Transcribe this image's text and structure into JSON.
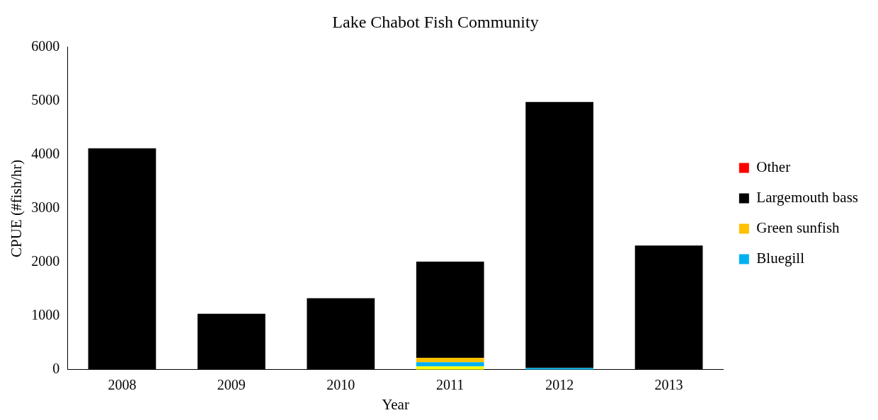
{
  "chart_data": {
    "type": "bar",
    "title": "Lake Chabot Fish Community",
    "xlabel": "Year",
    "ylabel": "CPUE (#fish/hr)",
    "categories": [
      "2008",
      "2009",
      "2010",
      "2011",
      "2012",
      "2013"
    ],
    "stacked": true,
    "series": [
      {
        "color": "#ffff00",
        "values": [
          0,
          0,
          0,
          60,
          0,
          0
        ]
      },
      {
        "name": "Bluegill",
        "color": "#00b0f0",
        "values": [
          0,
          0,
          0,
          80,
          30,
          0
        ]
      },
      {
        "name": "Green sunfish",
        "color": "#ffc000",
        "values": [
          0,
          0,
          0,
          80,
          0,
          0
        ]
      },
      {
        "name": "Largemouth bass",
        "color": "#000000",
        "values": [
          4120,
          1040,
          1330,
          1790,
          4950,
          2310
        ]
      },
      {
        "name": "Other",
        "color": "#ff0000",
        "values": [
          0,
          0,
          0,
          0,
          0,
          0
        ]
      }
    ],
    "ylim": [
      0,
      6000
    ],
    "yticks": [
      0,
      1000,
      2000,
      3000,
      4000,
      5000,
      6000
    ],
    "grid": false,
    "legend": "right"
  }
}
